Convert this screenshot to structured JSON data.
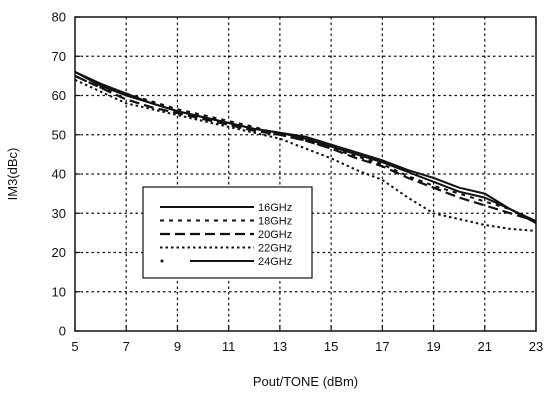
{
  "chart_data": {
    "type": "line",
    "title": "",
    "xlabel": "Pout/TONE (dBm)",
    "ylabel": "IM3(dBc)",
    "xlim": [
      5,
      23
    ],
    "ylim": [
      0,
      80
    ],
    "xticks": [
      5,
      7,
      9,
      11,
      13,
      15,
      17,
      19,
      21,
      23
    ],
    "yticks": [
      0,
      10,
      20,
      30,
      40,
      50,
      60,
      70,
      80
    ],
    "grid": true,
    "legend_position": "lower-left",
    "series": [
      {
        "name": "16GHz",
        "style": "solid",
        "x": [
          5,
          6,
          7,
          8,
          9,
          10,
          11,
          12,
          13,
          14,
          15,
          16,
          17,
          18,
          19,
          20,
          21,
          22,
          23
        ],
        "y": [
          66,
          62.5,
          60,
          58,
          56,
          54.5,
          53,
          51.5,
          50.5,
          49.5,
          47.5,
          45.5,
          43.5,
          41,
          39,
          36.5,
          35,
          31,
          28
        ]
      },
      {
        "name": "18GHz",
        "style": "dotted",
        "x": [
          5,
          6,
          7,
          8,
          9,
          10,
          11,
          12,
          13,
          14,
          15,
          16,
          17,
          18,
          19,
          20,
          21,
          22,
          23
        ],
        "y": [
          65,
          62,
          60.5,
          58.5,
          56.5,
          55,
          53.5,
          52,
          50,
          48.5,
          46.5,
          44.5,
          42.5,
          39.5,
          37,
          35,
          33,
          31,
          28
        ]
      },
      {
        "name": "20GHz",
        "style": "dashed",
        "x": [
          5,
          6,
          7,
          8,
          9,
          10,
          11,
          12,
          13,
          14,
          15,
          16,
          17,
          18,
          19,
          20,
          21,
          22,
          23
        ],
        "y": [
          65,
          62,
          59,
          57,
          55.5,
          54,
          52.5,
          51,
          50,
          48.5,
          46.5,
          44,
          42,
          39,
          36.5,
          34,
          32,
          30,
          28
        ]
      },
      {
        "name": "22GHz",
        "style": "short-dotted",
        "x": [
          5,
          6,
          7,
          8,
          9,
          10,
          11,
          12,
          13,
          14,
          15,
          16,
          17,
          18,
          19,
          20,
          21,
          22,
          23
        ],
        "y": [
          64,
          61,
          58,
          56.5,
          55,
          53.5,
          52,
          50.5,
          49,
          46.5,
          44,
          41,
          38.5,
          34,
          30,
          28.5,
          27,
          26,
          25.5
        ]
      },
      {
        "name": "24GHz",
        "style": "dot-solid",
        "x": [
          5,
          6,
          7,
          8,
          9,
          10,
          11,
          12,
          13,
          14,
          15,
          16,
          17,
          18,
          19,
          20,
          21,
          22,
          23
        ],
        "y": [
          66,
          63,
          60.5,
          58,
          56,
          54.5,
          53,
          51.5,
          50.5,
          49,
          47,
          45,
          43,
          40.5,
          38,
          35.5,
          34,
          31,
          27.5
        ]
      }
    ]
  }
}
